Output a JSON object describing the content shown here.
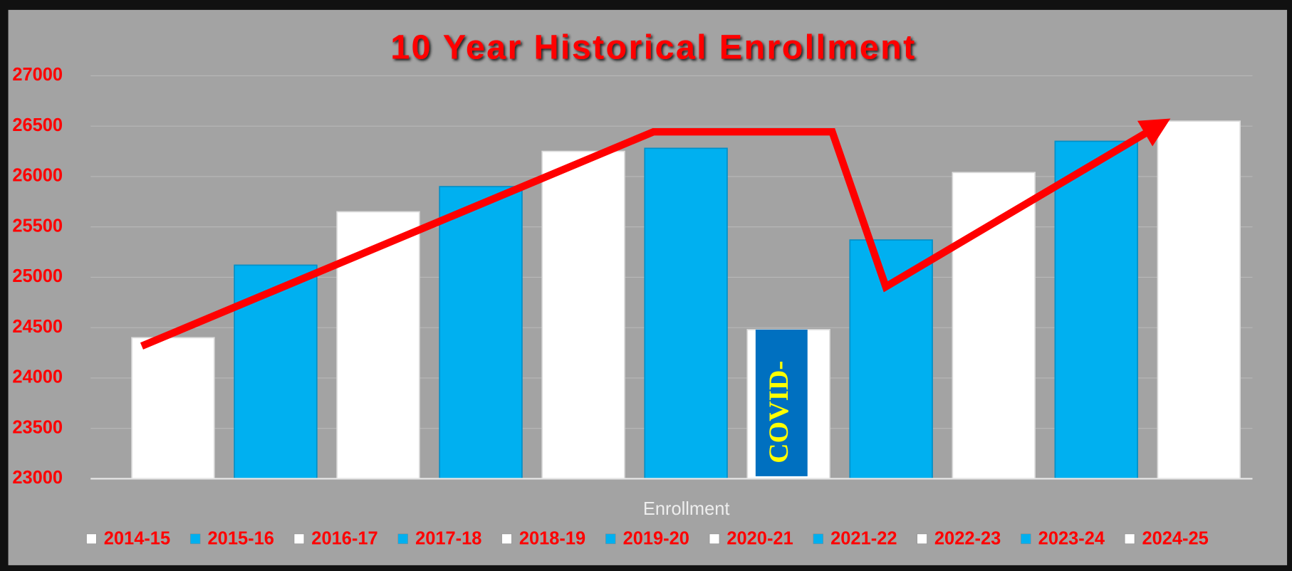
{
  "chart_data": {
    "type": "bar",
    "title": "10 Year Historical Enrollment",
    "x_label": "Enrollment",
    "categories": [
      "Enrollment"
    ],
    "series": [
      {
        "name": "2014-15",
        "color": "#ffffff",
        "values": [
          24400
        ]
      },
      {
        "name": "2015-16",
        "color": "#00b0f0",
        "values": [
          25120
        ]
      },
      {
        "name": "2016-17",
        "color": "#ffffff",
        "values": [
          25650
        ]
      },
      {
        "name": "2017-18",
        "color": "#00b0f0",
        "values": [
          25900
        ]
      },
      {
        "name": "2018-19",
        "color": "#ffffff",
        "values": [
          26250
        ]
      },
      {
        "name": "2019-20",
        "color": "#00b0f0",
        "values": [
          26280
        ]
      },
      {
        "name": "2020-21",
        "color": "#ffffff",
        "values": [
          24480
        ]
      },
      {
        "name": "2021-22",
        "color": "#00b0f0",
        "values": [
          25370
        ]
      },
      {
        "name": "2022-23",
        "color": "#ffffff",
        "values": [
          26040
        ]
      },
      {
        "name": "2023-24",
        "color": "#00b0f0",
        "values": [
          26350
        ]
      },
      {
        "name": "2024-25",
        "color": "#ffffff",
        "values": [
          26550
        ]
      }
    ],
    "annotation": "COVID-",
    "ylim": [
      23000,
      27000
    ],
    "yticks": [
      23000,
      23500,
      24000,
      24500,
      25000,
      25500,
      26000,
      26500,
      27000
    ],
    "grid": true,
    "legend": "bottom"
  }
}
